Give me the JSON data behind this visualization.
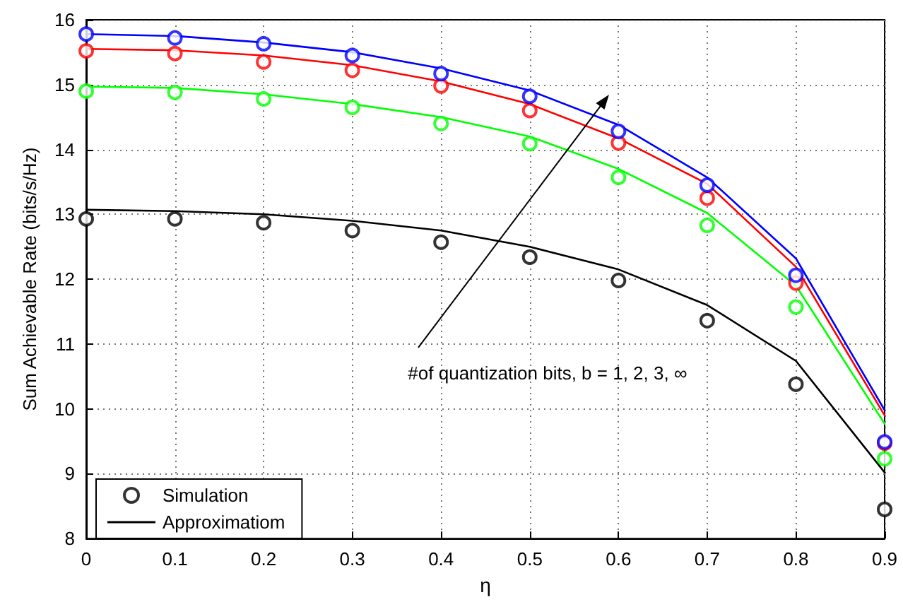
{
  "chart_data": {
    "type": "line",
    "xlabel": "η",
    "ylabel": "Sum Achievable Rate (bits/s/Hz)",
    "x": [
      0,
      0.1,
      0.2,
      0.3,
      0.4,
      0.5,
      0.6,
      0.7,
      0.8,
      0.9
    ],
    "xlim": [
      0,
      0.9
    ],
    "xticks": [
      0,
      0.1,
      0.2,
      0.3,
      0.4,
      0.5,
      0.6,
      0.7,
      0.8,
      0.9
    ],
    "ylim": [
      8,
      16
    ],
    "yticks": [
      8,
      9,
      10,
      11,
      12,
      13,
      14,
      15,
      16
    ],
    "grid": true,
    "legend": "bottom left",
    "line_style": "solid",
    "annotations": [
      "#of quantization bits, b = 1, 2, 3, ∞"
    ],
    "series": [
      {
        "name": "Simulation",
        "type": "scatter",
        "color": "#000000",
        "values": [
          12.93,
          12.93,
          12.87,
          12.75,
          12.57,
          12.34,
          11.98,
          11.36,
          10.38,
          8.45
        ]
      },
      {
        "name": "Approximatiom",
        "color": "#000000",
        "values": [
          13.07,
          13.05,
          13.0,
          12.9,
          12.75,
          12.5,
          12.15,
          11.6,
          10.74,
          9.02
        ]
      },
      {
        "type": "scatter",
        "color": "#00ff00",
        "values": [
          14.9,
          14.88,
          14.78,
          14.65,
          14.4,
          14.09,
          13.57,
          12.83,
          11.57,
          9.23
        ]
      },
      {
        "color": "#00ff00",
        "values": [
          14.97,
          14.95,
          14.85,
          14.7,
          14.5,
          14.2,
          13.7,
          13.02,
          11.9,
          9.77
        ]
      },
      {
        "type": "scatter",
        "color": "#ff0000",
        "values": [
          15.52,
          15.48,
          15.35,
          15.22,
          14.98,
          14.6,
          14.1,
          13.25,
          11.94,
          9.47
        ]
      },
      {
        "color": "#ff0000",
        "values": [
          15.55,
          15.53,
          15.45,
          15.3,
          15.05,
          14.7,
          14.17,
          13.47,
          12.19,
          9.9
        ]
      },
      {
        "type": "scatter",
        "color": "#0000ff",
        "values": [
          15.78,
          15.72,
          15.63,
          15.45,
          15.17,
          14.82,
          14.28,
          13.45,
          12.06,
          9.49
        ]
      },
      {
        "color": "#0000ff",
        "values": [
          15.78,
          15.75,
          15.65,
          15.5,
          15.25,
          14.91,
          14.38,
          13.57,
          12.32,
          9.98
        ]
      }
    ]
  }
}
